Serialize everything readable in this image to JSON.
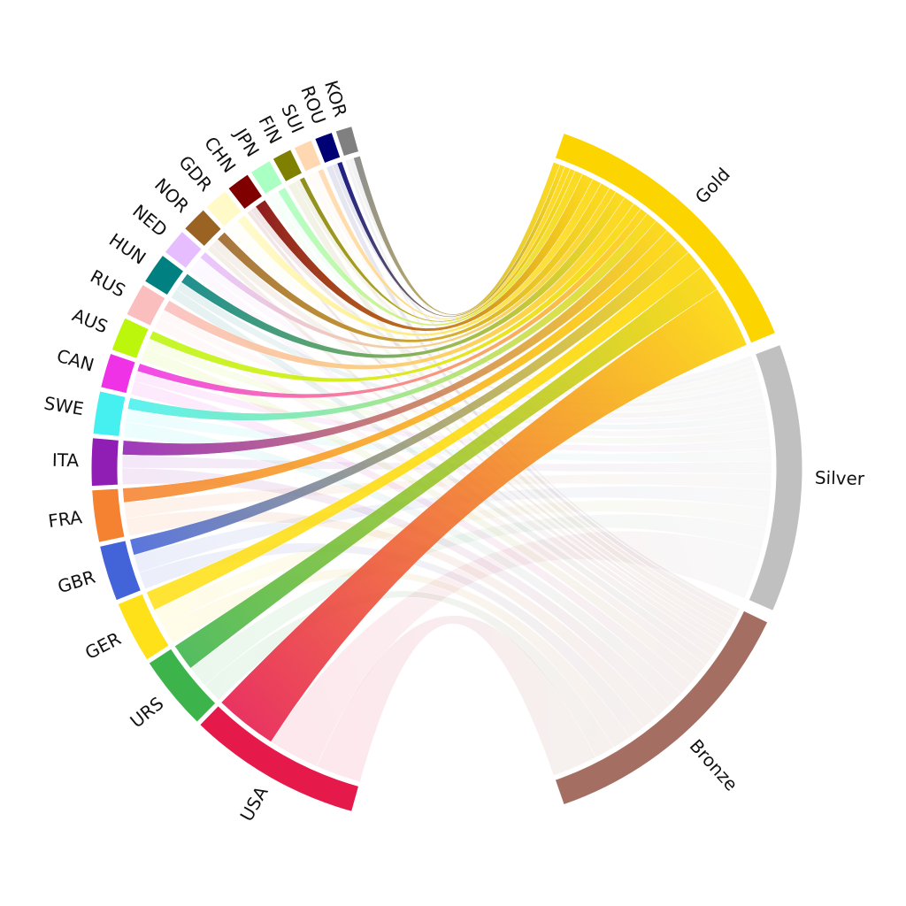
{
  "chart_data": {
    "type": "chord",
    "medals": [
      {
        "name": "Gold",
        "color": "#fcd500"
      },
      {
        "name": "Silver",
        "color": "#c0c0c0"
      },
      {
        "name": "Bronze",
        "color": "#a46f62"
      }
    ],
    "countries": [
      {
        "name": "USA",
        "color": "#e6194b",
        "values": [
          1100,
          900,
          800
        ]
      },
      {
        "name": "URS",
        "color": "#3cb44b",
        "values": [
          470,
          390,
          350
        ]
      },
      {
        "name": "GER",
        "color": "#ffe119",
        "values": [
          340,
          330,
          330
        ]
      },
      {
        "name": "GBR",
        "color": "#4363d8",
        "values": [
          280,
          320,
          300
        ]
      },
      {
        "name": "FRA",
        "color": "#f58231",
        "values": [
          250,
          280,
          310
        ]
      },
      {
        "name": "ITA",
        "color": "#911eb4",
        "values": [
          250,
          230,
          290
        ]
      },
      {
        "name": "SWE",
        "color": "#46f0f0",
        "values": [
          200,
          220,
          270
        ]
      },
      {
        "name": "CAN",
        "color": "#f032e6",
        "values": [
          140,
          180,
          240
        ]
      },
      {
        "name": "AUS",
        "color": "#bcf60c",
        "values": [
          150,
          170,
          230
        ]
      },
      {
        "name": "RUS",
        "color": "#fabebe",
        "values": [
          190,
          160,
          190
        ]
      },
      {
        "name": "HUN",
        "color": "#008080",
        "values": [
          180,
          150,
          170
        ]
      },
      {
        "name": "NED",
        "color": "#e6beff",
        "values": [
          130,
          130,
          170
        ]
      },
      {
        "name": "NOR",
        "color": "#9a6324",
        "values": [
          170,
          150,
          100
        ]
      },
      {
        "name": "GDR",
        "color": "#fffac8",
        "values": [
          160,
          130,
          110
        ]
      },
      {
        "name": "CHN",
        "color": "#800000",
        "values": [
          200,
          110,
          70
        ]
      },
      {
        "name": "JPN",
        "color": "#aaffc3",
        "values": [
          140,
          100,
          110
        ]
      },
      {
        "name": "FIN",
        "color": "#808000",
        "values": [
          90,
          90,
          140
        ]
      },
      {
        "name": "SUI",
        "color": "#ffd8b1",
        "values": [
          100,
          100,
          100
        ]
      },
      {
        "name": "ROU",
        "color": "#000075",
        "values": [
          90,
          90,
          110
        ]
      },
      {
        "name": "KOR",
        "color": "#808080",
        "values": [
          120,
          90,
          60
        ]
      }
    ]
  }
}
